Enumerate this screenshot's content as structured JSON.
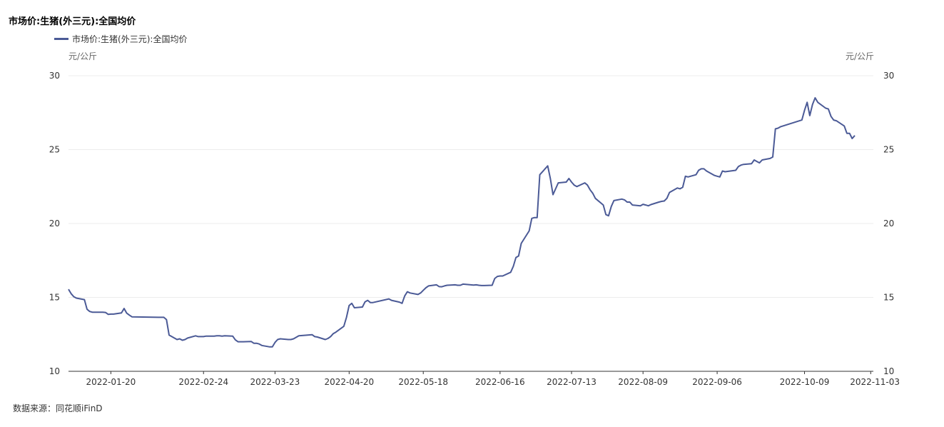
{
  "title": "市场价:生猪(外三元):全国均价",
  "source": "数据来源：同花顺iFinD",
  "colors": {
    "line": "#4b5a96",
    "grid": "#ececec",
    "axis": "#333333"
  },
  "chart_data": {
    "type": "line",
    "title": "市场价:生猪(外三元):全国均价",
    "ylabel_left": "元/公斤",
    "ylabel_right": "元/公斤",
    "ylim": [
      10,
      30
    ],
    "yticks": [
      10,
      15,
      20,
      25,
      30
    ],
    "xlim": [
      "2022-01-04",
      "2022-11-04"
    ],
    "xticks": [
      "2022-01-20",
      "2022-02-24",
      "2022-03-23",
      "2022-04-20",
      "2022-05-18",
      "2022-06-16",
      "2022-07-13",
      "2022-08-09",
      "2022-09-06",
      "2022-10-09",
      "2022-11-03"
    ],
    "grid": true,
    "legend_position": "top-left",
    "series": [
      {
        "name": "市场价:生猪(外三元):全国均价",
        "points": [
          [
            "2022-01-04",
            15.55
          ],
          [
            "2022-01-05",
            15.25
          ],
          [
            "2022-01-06",
            15.05
          ],
          [
            "2022-01-07",
            14.95
          ],
          [
            "2022-01-10",
            14.85
          ],
          [
            "2022-01-11",
            14.2
          ],
          [
            "2022-01-12",
            14.05
          ],
          [
            "2022-01-13",
            14.0
          ],
          [
            "2022-01-14",
            14.0
          ],
          [
            "2022-01-17",
            14.0
          ],
          [
            "2022-01-18",
            13.98
          ],
          [
            "2022-01-19",
            13.85
          ],
          [
            "2022-01-20",
            13.87
          ],
          [
            "2022-01-21",
            13.87
          ],
          [
            "2022-01-24",
            13.95
          ],
          [
            "2022-01-25",
            14.25
          ],
          [
            "2022-01-26",
            13.93
          ],
          [
            "2022-01-27",
            13.8
          ],
          [
            "2022-01-28",
            13.68
          ],
          [
            "2022-02-07",
            13.65
          ],
          [
            "2022-02-08",
            13.65
          ],
          [
            "2022-02-09",
            13.65
          ],
          [
            "2022-02-10",
            13.5
          ],
          [
            "2022-02-11",
            12.45
          ],
          [
            "2022-02-14",
            12.15
          ],
          [
            "2022-02-15",
            12.2
          ],
          [
            "2022-02-16",
            12.1
          ],
          [
            "2022-02-17",
            12.15
          ],
          [
            "2022-02-18",
            12.25
          ],
          [
            "2022-02-21",
            12.4
          ],
          [
            "2022-02-22",
            12.35
          ],
          [
            "2022-02-23",
            12.35
          ],
          [
            "2022-02-24",
            12.35
          ],
          [
            "2022-02-25",
            12.38
          ],
          [
            "2022-02-28",
            12.38
          ],
          [
            "2022-03-01",
            12.4
          ],
          [
            "2022-03-02",
            12.4
          ],
          [
            "2022-03-03",
            12.38
          ],
          [
            "2022-03-04",
            12.4
          ],
          [
            "2022-03-07",
            12.38
          ],
          [
            "2022-03-08",
            12.13
          ],
          [
            "2022-03-09",
            12.0
          ],
          [
            "2022-03-10",
            12.0
          ],
          [
            "2022-03-11",
            12.0
          ],
          [
            "2022-03-14",
            12.02
          ],
          [
            "2022-03-15",
            11.9
          ],
          [
            "2022-03-16",
            11.9
          ],
          [
            "2022-03-17",
            11.85
          ],
          [
            "2022-03-18",
            11.75
          ],
          [
            "2022-03-21",
            11.65
          ],
          [
            "2022-03-22",
            11.65
          ],
          [
            "2022-03-23",
            11.95
          ],
          [
            "2022-03-24",
            12.15
          ],
          [
            "2022-03-25",
            12.2
          ],
          [
            "2022-03-28",
            12.15
          ],
          [
            "2022-03-29",
            12.15
          ],
          [
            "2022-03-30",
            12.2
          ],
          [
            "2022-03-31",
            12.3
          ],
          [
            "2022-04-01",
            12.4
          ],
          [
            "2022-04-06",
            12.48
          ],
          [
            "2022-04-07",
            12.35
          ],
          [
            "2022-04-08",
            12.32
          ],
          [
            "2022-04-11",
            12.15
          ],
          [
            "2022-04-12",
            12.22
          ],
          [
            "2022-04-13",
            12.35
          ],
          [
            "2022-04-14",
            12.55
          ],
          [
            "2022-04-15",
            12.65
          ],
          [
            "2022-04-18",
            13.05
          ],
          [
            "2022-04-19",
            13.65
          ],
          [
            "2022-04-20",
            14.45
          ],
          [
            "2022-04-21",
            14.6
          ],
          [
            "2022-04-22",
            14.3
          ],
          [
            "2022-04-25",
            14.35
          ],
          [
            "2022-04-26",
            14.7
          ],
          [
            "2022-04-27",
            14.8
          ],
          [
            "2022-04-28",
            14.65
          ],
          [
            "2022-04-29",
            14.65
          ],
          [
            "2022-05-05",
            14.9
          ],
          [
            "2022-05-06",
            14.8
          ],
          [
            "2022-05-09",
            14.68
          ],
          [
            "2022-05-10",
            14.6
          ],
          [
            "2022-05-11",
            15.1
          ],
          [
            "2022-05-12",
            15.38
          ],
          [
            "2022-05-13",
            15.3
          ],
          [
            "2022-05-16",
            15.2
          ],
          [
            "2022-05-17",
            15.3
          ],
          [
            "2022-05-18",
            15.48
          ],
          [
            "2022-05-19",
            15.65
          ],
          [
            "2022-05-20",
            15.78
          ],
          [
            "2022-05-23",
            15.85
          ],
          [
            "2022-05-24",
            15.73
          ],
          [
            "2022-05-25",
            15.72
          ],
          [
            "2022-05-26",
            15.78
          ],
          [
            "2022-05-27",
            15.82
          ],
          [
            "2022-05-30",
            15.85
          ],
          [
            "2022-05-31",
            15.82
          ],
          [
            "2022-06-01",
            15.82
          ],
          [
            "2022-06-02",
            15.9
          ],
          [
            "2022-06-06",
            15.83
          ],
          [
            "2022-06-07",
            15.85
          ],
          [
            "2022-06-08",
            15.82
          ],
          [
            "2022-06-09",
            15.8
          ],
          [
            "2022-06-10",
            15.8
          ],
          [
            "2022-06-13",
            15.82
          ],
          [
            "2022-06-14",
            16.28
          ],
          [
            "2022-06-15",
            16.42
          ],
          [
            "2022-06-16",
            16.45
          ],
          [
            "2022-06-17",
            16.45
          ],
          [
            "2022-06-20",
            16.7
          ],
          [
            "2022-06-21",
            17.1
          ],
          [
            "2022-06-22",
            17.7
          ],
          [
            "2022-06-23",
            17.8
          ],
          [
            "2022-06-24",
            18.65
          ],
          [
            "2022-06-27",
            19.5
          ],
          [
            "2022-06-28",
            20.35
          ],
          [
            "2022-06-29",
            20.4
          ],
          [
            "2022-06-30",
            20.4
          ],
          [
            "2022-07-01",
            23.3
          ],
          [
            "2022-07-04",
            23.9
          ],
          [
            "2022-07-05",
            23.05
          ],
          [
            "2022-07-06",
            21.95
          ],
          [
            "2022-07-07",
            22.35
          ],
          [
            "2022-07-08",
            22.75
          ],
          [
            "2022-07-11",
            22.8
          ],
          [
            "2022-07-12",
            23.05
          ],
          [
            "2022-07-13",
            22.8
          ],
          [
            "2022-07-14",
            22.6
          ],
          [
            "2022-07-15",
            22.5
          ],
          [
            "2022-07-18",
            22.75
          ],
          [
            "2022-07-19",
            22.6
          ],
          [
            "2022-07-20",
            22.28
          ],
          [
            "2022-07-21",
            22.05
          ],
          [
            "2022-07-22",
            21.7
          ],
          [
            "2022-07-25",
            21.25
          ],
          [
            "2022-07-26",
            20.6
          ],
          [
            "2022-07-27",
            20.52
          ],
          [
            "2022-07-28",
            21.15
          ],
          [
            "2022-07-29",
            21.55
          ],
          [
            "2022-08-01",
            21.65
          ],
          [
            "2022-08-02",
            21.6
          ],
          [
            "2022-08-03",
            21.45
          ],
          [
            "2022-08-04",
            21.45
          ],
          [
            "2022-08-05",
            21.25
          ],
          [
            "2022-08-08",
            21.2
          ],
          [
            "2022-08-09",
            21.3
          ],
          [
            "2022-08-10",
            21.25
          ],
          [
            "2022-08-11",
            21.2
          ],
          [
            "2022-08-12",
            21.28
          ],
          [
            "2022-08-15",
            21.45
          ],
          [
            "2022-08-16",
            21.5
          ],
          [
            "2022-08-17",
            21.52
          ],
          [
            "2022-08-18",
            21.7
          ],
          [
            "2022-08-19",
            22.1
          ],
          [
            "2022-08-22",
            22.4
          ],
          [
            "2022-08-23",
            22.35
          ],
          [
            "2022-08-24",
            22.45
          ],
          [
            "2022-08-25",
            23.2
          ],
          [
            "2022-08-26",
            23.15
          ],
          [
            "2022-08-29",
            23.3
          ],
          [
            "2022-08-30",
            23.6
          ],
          [
            "2022-08-31",
            23.7
          ],
          [
            "2022-09-01",
            23.7
          ],
          [
            "2022-09-02",
            23.55
          ],
          [
            "2022-09-05",
            23.25
          ],
          [
            "2022-09-06",
            23.2
          ],
          [
            "2022-09-07",
            23.15
          ],
          [
            "2022-09-08",
            23.55
          ],
          [
            "2022-09-09",
            23.5
          ],
          [
            "2022-09-13",
            23.6
          ],
          [
            "2022-09-14",
            23.85
          ],
          [
            "2022-09-15",
            23.95
          ],
          [
            "2022-09-16",
            24.0
          ],
          [
            "2022-09-19",
            24.05
          ],
          [
            "2022-09-20",
            24.3
          ],
          [
            "2022-09-21",
            24.2
          ],
          [
            "2022-09-22",
            24.1
          ],
          [
            "2022-09-23",
            24.3
          ],
          [
            "2022-09-26",
            24.4
          ],
          [
            "2022-09-27",
            24.5
          ],
          [
            "2022-09-28",
            26.4
          ],
          [
            "2022-09-29",
            26.45
          ],
          [
            "2022-09-30",
            26.55
          ],
          [
            "2022-10-08",
            27.0
          ],
          [
            "2022-10-09",
            27.65
          ],
          [
            "2022-10-10",
            28.2
          ],
          [
            "2022-10-11",
            27.3
          ],
          [
            "2022-10-12",
            28.05
          ],
          [
            "2022-10-13",
            28.5
          ],
          [
            "2022-10-14",
            28.2
          ],
          [
            "2022-10-17",
            27.8
          ],
          [
            "2022-10-18",
            27.75
          ],
          [
            "2022-10-19",
            27.25
          ],
          [
            "2022-10-20",
            27.0
          ],
          [
            "2022-10-21",
            26.95
          ],
          [
            "2022-10-24",
            26.6
          ],
          [
            "2022-10-25",
            26.1
          ],
          [
            "2022-10-26",
            26.1
          ],
          [
            "2022-10-27",
            25.75
          ],
          [
            "2022-10-28",
            25.95
          ]
        ]
      }
    ]
  }
}
